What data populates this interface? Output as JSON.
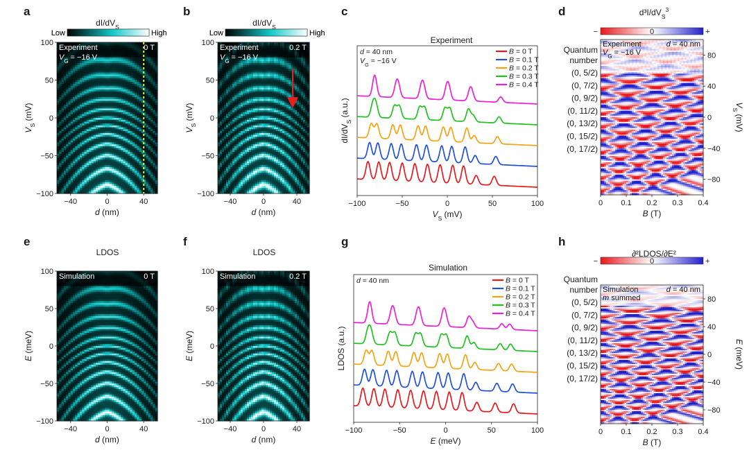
{
  "panels": [
    {
      "id": "a",
      "letter": "a",
      "title": "dI/dV",
      "title_sub": "S",
      "cb_low": "Low",
      "cb_high": "High",
      "ylabel_main": "V",
      "ylabel_sub": "S",
      "ylabel_unit": " (mV)",
      "xlabel_main": "d",
      "xlabel_unit": " (nm)",
      "overlay_top": "Experiment",
      "overlay_gate": "V",
      "overlay_gate_sub": "G",
      "overlay_gate_val": " = −16 V",
      "field": "0 T",
      "xticks": [
        "−40",
        "0",
        "40"
      ],
      "yticks": [
        "−100",
        "−50",
        "0",
        "50",
        "100"
      ],
      "xlim": [
        -55,
        55
      ],
      "ylim": [
        -100,
        100
      ],
      "dashed_line_x": 40
    },
    {
      "id": "b",
      "letter": "b",
      "title": "dI/dV",
      "title_sub": "S",
      "cb_low": "Low",
      "cb_high": "High",
      "ylabel_main": "V",
      "ylabel_sub": "S",
      "ylabel_unit": " (mV)",
      "xlabel_main": "d",
      "xlabel_unit": " (nm)",
      "overlay_top": "Experiment",
      "overlay_gate": "V",
      "overlay_gate_sub": "G",
      "overlay_gate_val": " = −16 V",
      "field": "0.2 T",
      "xticks": [
        "−40",
        "0",
        "40"
      ],
      "yticks": [
        "−100",
        "−50",
        "0",
        "50",
        "100"
      ],
      "xlim": [
        -55,
        55
      ],
      "ylim": [
        -100,
        100
      ],
      "arrow_x": 35,
      "arrow_y": [
        65,
        20
      ]
    },
    {
      "id": "e",
      "letter": "e",
      "title": "LDOS",
      "cb_low": "Low",
      "cb_high": "High",
      "ylabel_main": "E",
      "ylabel_unit": " (meV)",
      "xlabel_main": "d",
      "xlabel_unit": " (nm)",
      "overlay_top": "Simulation",
      "field": "0 T",
      "xticks": [
        "−40",
        "0",
        "40"
      ],
      "yticks": [
        "−100",
        "−50",
        "0",
        "50",
        "100"
      ],
      "xlim": [
        -55,
        55
      ],
      "ylim": [
        -100,
        100
      ]
    },
    {
      "id": "f",
      "letter": "f",
      "title": "LDOS",
      "cb_low": "Low",
      "cb_high": "High",
      "ylabel_main": "E",
      "ylabel_unit": " (meV)",
      "xlabel_main": "d",
      "xlabel_unit": " (nm)",
      "overlay_top": "Simulation",
      "field": "0.2 T",
      "xticks": [
        "−40",
        "0",
        "40"
      ],
      "yticks": [
        "−100",
        "−50",
        "0",
        "50",
        "100"
      ],
      "xlim": [
        -55,
        55
      ],
      "ylim": [
        -100,
        100
      ]
    }
  ],
  "spectra": [
    {
      "id": "c",
      "letter": "c",
      "title": "Experiment",
      "ylabel": "dI/dV",
      "ylabel_sub": "S",
      "ylabel_unit": " (a.u.)",
      "xlabel_main": "V",
      "xlabel_sub": "S",
      "xlabel_unit": " (mV)",
      "annot_d": "d",
      "annot_d_val": " = 40 nm",
      "annot_gate": "V",
      "annot_gate_sub": "G",
      "annot_gate_val": " = −16 V",
      "xticks": [
        "−100",
        "−50",
        "0",
        "50",
        "100"
      ],
      "xlim": [
        -100,
        100
      ]
    },
    {
      "id": "g",
      "letter": "g",
      "title": "Simulation",
      "ylabel": "LDOS",
      "ylabel_unit": " (a.u.)",
      "xlabel_main": "E",
      "xlabel_unit": " (meV)",
      "annot_d": "d",
      "annot_d_val": " = 40 nm",
      "xticks": [
        "−100",
        "−50",
        "0",
        "50",
        "100"
      ],
      "xlim": [
        -100,
        100
      ]
    }
  ],
  "fans": [
    {
      "id": "d",
      "letter": "d",
      "title": "d³I/dV",
      "title_sub": "S",
      "title_sup": "3",
      "cb_minus": "−",
      "cb_zero": "0",
      "cb_plus": "+",
      "overlay_1": "Experiment",
      "overlay_gate": "V",
      "overlay_gate_sub": "G",
      "overlay_gate_val": " = −16 V",
      "overlay_d": "d",
      "overlay_d_val": " = 40 nm",
      "ylabel_main": "V",
      "ylabel_sub": "S",
      "ylabel_unit": " (mV)",
      "xlabel_main": "B",
      "xlabel_unit": " (T)",
      "xticks": [
        "0",
        "0.1",
        "0.2",
        "0.3",
        "0.4"
      ],
      "yticks": [
        "80",
        "40",
        "0",
        "−40",
        "−80"
      ],
      "xlim": [
        0,
        0.4
      ],
      "ylim": [
        -100,
        100
      ]
    },
    {
      "id": "h",
      "letter": "h",
      "title": "∂²LDOS/∂E²",
      "cb_minus": "−",
      "cb_zero": "0",
      "cb_plus": "+",
      "overlay_1": "Simulation",
      "overlay_m": "m",
      "overlay_m_val": " summed",
      "overlay_d": "d",
      "overlay_d_val": " = 40 nm",
      "ylabel_main": "E",
      "ylabel_unit": " (meV)",
      "xlabel_main": "B",
      "xlabel_unit": " (T)",
      "xticks": [
        "0",
        "0.1",
        "0.2",
        "0.3",
        "0.4"
      ],
      "yticks": [
        "80",
        "40",
        "0",
        "−40",
        "−80"
      ],
      "xlim": [
        0,
        0.4
      ],
      "ylim": [
        -100,
        100
      ]
    }
  ],
  "quantum_numbers": {
    "header_1": "Quantum",
    "header_2": "number",
    "labels": [
      "(0, 5/2)",
      "(0, 7/2)",
      "(0, 9/2)",
      "(0, 11/2)",
      "(0, 13/2)",
      "(0, 15/2)",
      "(0, 17/2)"
    ]
  },
  "legend": {
    "b_label": "B",
    "entries": [
      {
        "value": " = 0 T",
        "color": "#e8171d"
      },
      {
        "value": " = 0.1 T",
        "color": "#1f4fe0"
      },
      {
        "value": " = 0.2 T",
        "color": "#f5a312"
      },
      {
        "value": " = 0.3 T",
        "color": "#1fc21f"
      },
      {
        "value": " = 0.4 T",
        "color": "#ee1fd6"
      }
    ]
  },
  "colors": {
    "colormap_dark": "#000000",
    "colormap_mid": "#12c9c9",
    "colormap_light": "#ffffff",
    "diverging_neg": "#e8171d",
    "diverging_pos": "#2222cc",
    "dashed_line": "#f2ee2a",
    "arrow": "#e82020"
  },
  "chart_data": [
    {
      "type": "heatmap",
      "panel": "a",
      "x_label": "d (nm)",
      "y_label": "VS (mV)",
      "x_range": [
        -55,
        55
      ],
      "y_range": [
        -100,
        100
      ],
      "field_T": 0,
      "z": "dI/dVS"
    },
    {
      "type": "heatmap",
      "panel": "b",
      "x_label": "d (nm)",
      "y_label": "VS (mV)",
      "x_range": [
        -55,
        55
      ],
      "y_range": [
        -100,
        100
      ],
      "field_T": 0.2,
      "z": "dI/dVS"
    },
    {
      "type": "line",
      "panel": "c",
      "x_label": "VS (mV)",
      "y_label": "dI/dVS (a.u.)",
      "xlim": [
        -100,
        100
      ],
      "series": [
        {
          "name": "B = 0 T"
        },
        {
          "name": "B = 0.1 T"
        },
        {
          "name": "B = 0.2 T"
        },
        {
          "name": "B = 0.3 T"
        },
        {
          "name": "B = 0.4 T"
        }
      ],
      "peak_positions_mV": [
        -88,
        -76,
        -64,
        -50,
        -36,
        -22,
        -8,
        6,
        18,
        32,
        52
      ]
    },
    {
      "type": "heatmap",
      "panel": "d",
      "x_label": "B (T)",
      "y_label": "VS (mV)",
      "x_range": [
        0,
        0.4
      ],
      "y_range": [
        -100,
        100
      ],
      "z": "d3I/dVS3",
      "levels_at_zero_field_mV": [
        50,
        25,
        5,
        -12,
        -28,
        -44,
        -60
      ]
    },
    {
      "type": "heatmap",
      "panel": "e",
      "x_label": "d (nm)",
      "y_label": "E (meV)",
      "x_range": [
        -55,
        55
      ],
      "y_range": [
        -100,
        100
      ],
      "field_T": 0,
      "z": "LDOS"
    },
    {
      "type": "heatmap",
      "panel": "f",
      "x_label": "d (nm)",
      "y_label": "E (meV)",
      "x_range": [
        -55,
        55
      ],
      "y_range": [
        -100,
        100
      ],
      "field_T": 0.2,
      "z": "LDOS"
    },
    {
      "type": "line",
      "panel": "g",
      "x_label": "E (meV)",
      "y_label": "LDOS (a.u.)",
      "xlim": [
        -100,
        100
      ],
      "series": [
        {
          "name": "B = 0 T"
        },
        {
          "name": "B = 0.1 T"
        },
        {
          "name": "B = 0.2 T"
        },
        {
          "name": "B = 0.3 T"
        },
        {
          "name": "B = 0.4 T"
        }
      ],
      "peak_positions_meV": [
        -90,
        -78,
        -66,
        -52,
        -38,
        -24,
        -10,
        4,
        18,
        34,
        54,
        74
      ]
    },
    {
      "type": "heatmap",
      "panel": "h",
      "x_label": "B (T)",
      "y_label": "E (meV)",
      "x_range": [
        0,
        0.4
      ],
      "y_range": [
        -100,
        100
      ],
      "z": "d2LDOS/dE2",
      "levels_at_zero_field_meV": [
        50,
        25,
        5,
        -12,
        -28,
        -44,
        -60
      ]
    }
  ]
}
